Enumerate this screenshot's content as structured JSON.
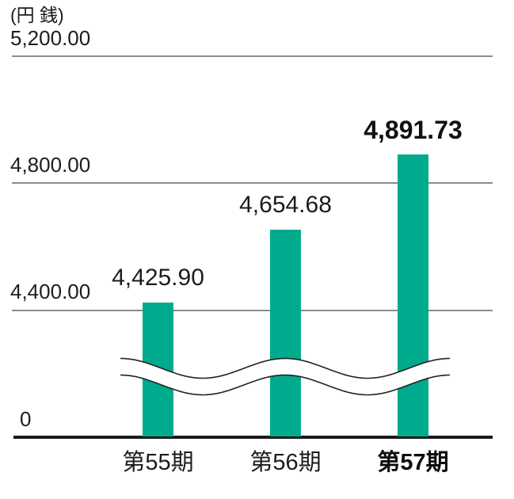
{
  "chart_data": {
    "type": "bar",
    "unit_label": "(円 銭)",
    "categories": [
      "第55期",
      "第56期",
      "第57期"
    ],
    "values": [
      4425.9,
      4654.68,
      4891.73
    ],
    "value_labels": [
      "4,425.90",
      "4,654.68",
      "4,891.73"
    ],
    "yticks": [
      {
        "value": 5200,
        "label": "5,200.00"
      },
      {
        "value": 4800,
        "label": "4,800.00"
      },
      {
        "value": 4400,
        "label": "4,400.00"
      },
      {
        "value": 0,
        "label": "0"
      }
    ],
    "xlabel": "",
    "ylabel": "",
    "ylim_visible": [
      4400,
      5200
    ],
    "grid": "horizontal",
    "axis_break": true,
    "highlight_index": 2,
    "bar_color": "#00ab8d",
    "gridline_color": "#8c8c8c",
    "axis_line_color": "#1c1c1c",
    "text_color": "#1c1c1c"
  }
}
